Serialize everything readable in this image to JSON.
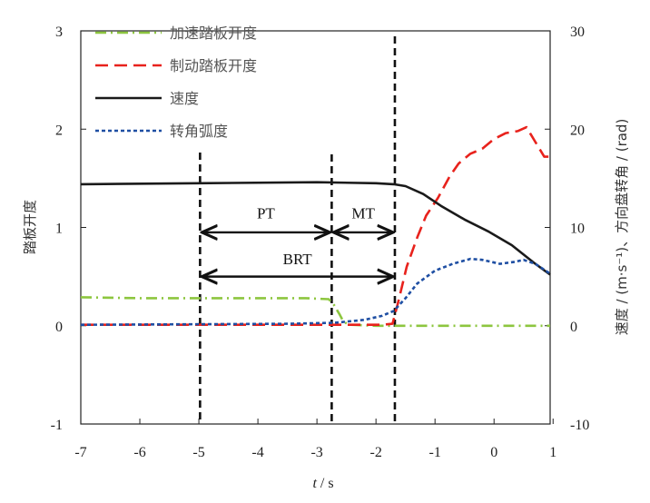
{
  "chart_data": {
    "type": "line",
    "xlabel_var": "t",
    "xlabel_unit": " / s",
    "ylabel_left": "踏板开度",
    "ylabel_right": "速度 / (m·s⁻¹)、方向盘转角 / (rad)",
    "xlim": [
      -7,
      0.95
    ],
    "ylim_left": [
      -1,
      3
    ],
    "ylim_right": [
      -10,
      30
    ],
    "x_ticks": [
      -7,
      -6,
      -5,
      -4,
      -3,
      -2,
      -1,
      0,
      1
    ],
    "y_left_ticks": [
      -1,
      0,
      1,
      2,
      3
    ],
    "y_right_ticks": [
      -10,
      0,
      10,
      20,
      30
    ],
    "grid": false,
    "legend_position": "top-left",
    "series": [
      {
        "name": "加速踏板开度",
        "axis": "left",
        "color": "#8dc63f",
        "style": "dashdot",
        "points": [
          [
            -7,
            0.29
          ],
          [
            -6,
            0.28
          ],
          [
            -5,
            0.28
          ],
          [
            -4,
            0.28
          ],
          [
            -3.2,
            0.28
          ],
          [
            -2.8,
            0.27
          ],
          [
            -2.72,
            0.22
          ],
          [
            -2.62,
            0.12
          ],
          [
            -2.55,
            0.04
          ],
          [
            -2.45,
            0.01
          ],
          [
            -2,
            0.0
          ],
          [
            -1,
            0.0
          ],
          [
            0,
            0.0
          ],
          [
            0.95,
            0.0
          ]
        ]
      },
      {
        "name": "制动踏板开度",
        "axis": "left",
        "color": "#e8221c",
        "style": "dashed",
        "points": [
          [
            -7,
            0.01
          ],
          [
            -5,
            0.01
          ],
          [
            -3,
            0.01
          ],
          [
            -1.9,
            0.01
          ],
          [
            -1.72,
            0.02
          ],
          [
            -1.62,
            0.25
          ],
          [
            -1.48,
            0.6
          ],
          [
            -1.3,
            0.9
          ],
          [
            -1.15,
            1.12
          ],
          [
            -0.95,
            1.3
          ],
          [
            -0.75,
            1.52
          ],
          [
            -0.6,
            1.65
          ],
          [
            -0.4,
            1.75
          ],
          [
            -0.2,
            1.8
          ],
          [
            0,
            1.9
          ],
          [
            0.2,
            1.96
          ],
          [
            0.4,
            1.98
          ],
          [
            0.55,
            2.02
          ],
          [
            0.62,
            1.95
          ],
          [
            0.72,
            1.85
          ],
          [
            0.85,
            1.72
          ],
          [
            0.95,
            1.72
          ]
        ]
      },
      {
        "name": "速度",
        "axis": "right",
        "color": "#1a1a1a",
        "style": "solid",
        "points": [
          [
            -7,
            14.4
          ],
          [
            -5,
            14.5
          ],
          [
            -3,
            14.6
          ],
          [
            -2,
            14.5
          ],
          [
            -1.7,
            14.4
          ],
          [
            -1.5,
            14.2
          ],
          [
            -1.2,
            13.4
          ],
          [
            -0.9,
            12.2
          ],
          [
            -0.5,
            10.8
          ],
          [
            -0.1,
            9.6
          ],
          [
            0.3,
            8.2
          ],
          [
            0.7,
            6.3
          ],
          [
            0.95,
            5.2
          ]
        ]
      },
      {
        "name": "转角弧度",
        "axis": "right",
        "color": "#1f4fa3",
        "style": "dotted",
        "points": [
          [
            -7,
            0.1
          ],
          [
            -5,
            0.15
          ],
          [
            -3.5,
            0.2
          ],
          [
            -2.7,
            0.3
          ],
          [
            -2.2,
            0.6
          ],
          [
            -1.9,
            1.0
          ],
          [
            -1.7,
            1.5
          ],
          [
            -1.5,
            2.8
          ],
          [
            -1.3,
            4.3
          ],
          [
            -1.0,
            5.6
          ],
          [
            -0.7,
            6.3
          ],
          [
            -0.4,
            6.8
          ],
          [
            -0.2,
            6.7
          ],
          [
            0.1,
            6.3
          ],
          [
            0.35,
            6.5
          ],
          [
            0.5,
            6.7
          ],
          [
            0.7,
            6.3
          ],
          [
            0.95,
            5.3
          ]
        ]
      }
    ],
    "vlines": [
      -4.98,
      -2.75,
      -1.68
    ],
    "annotations": [
      {
        "label": "PT",
        "from": -4.98,
        "to": -2.75,
        "y": 0.95,
        "label_y": 1.15
      },
      {
        "label": "MT",
        "from": -2.75,
        "to": -1.68,
        "y": 0.95,
        "label_y": 1.15
      },
      {
        "label": "BRT",
        "from": -4.98,
        "to": -1.68,
        "y": 0.5,
        "label_y": 0.68
      }
    ]
  }
}
